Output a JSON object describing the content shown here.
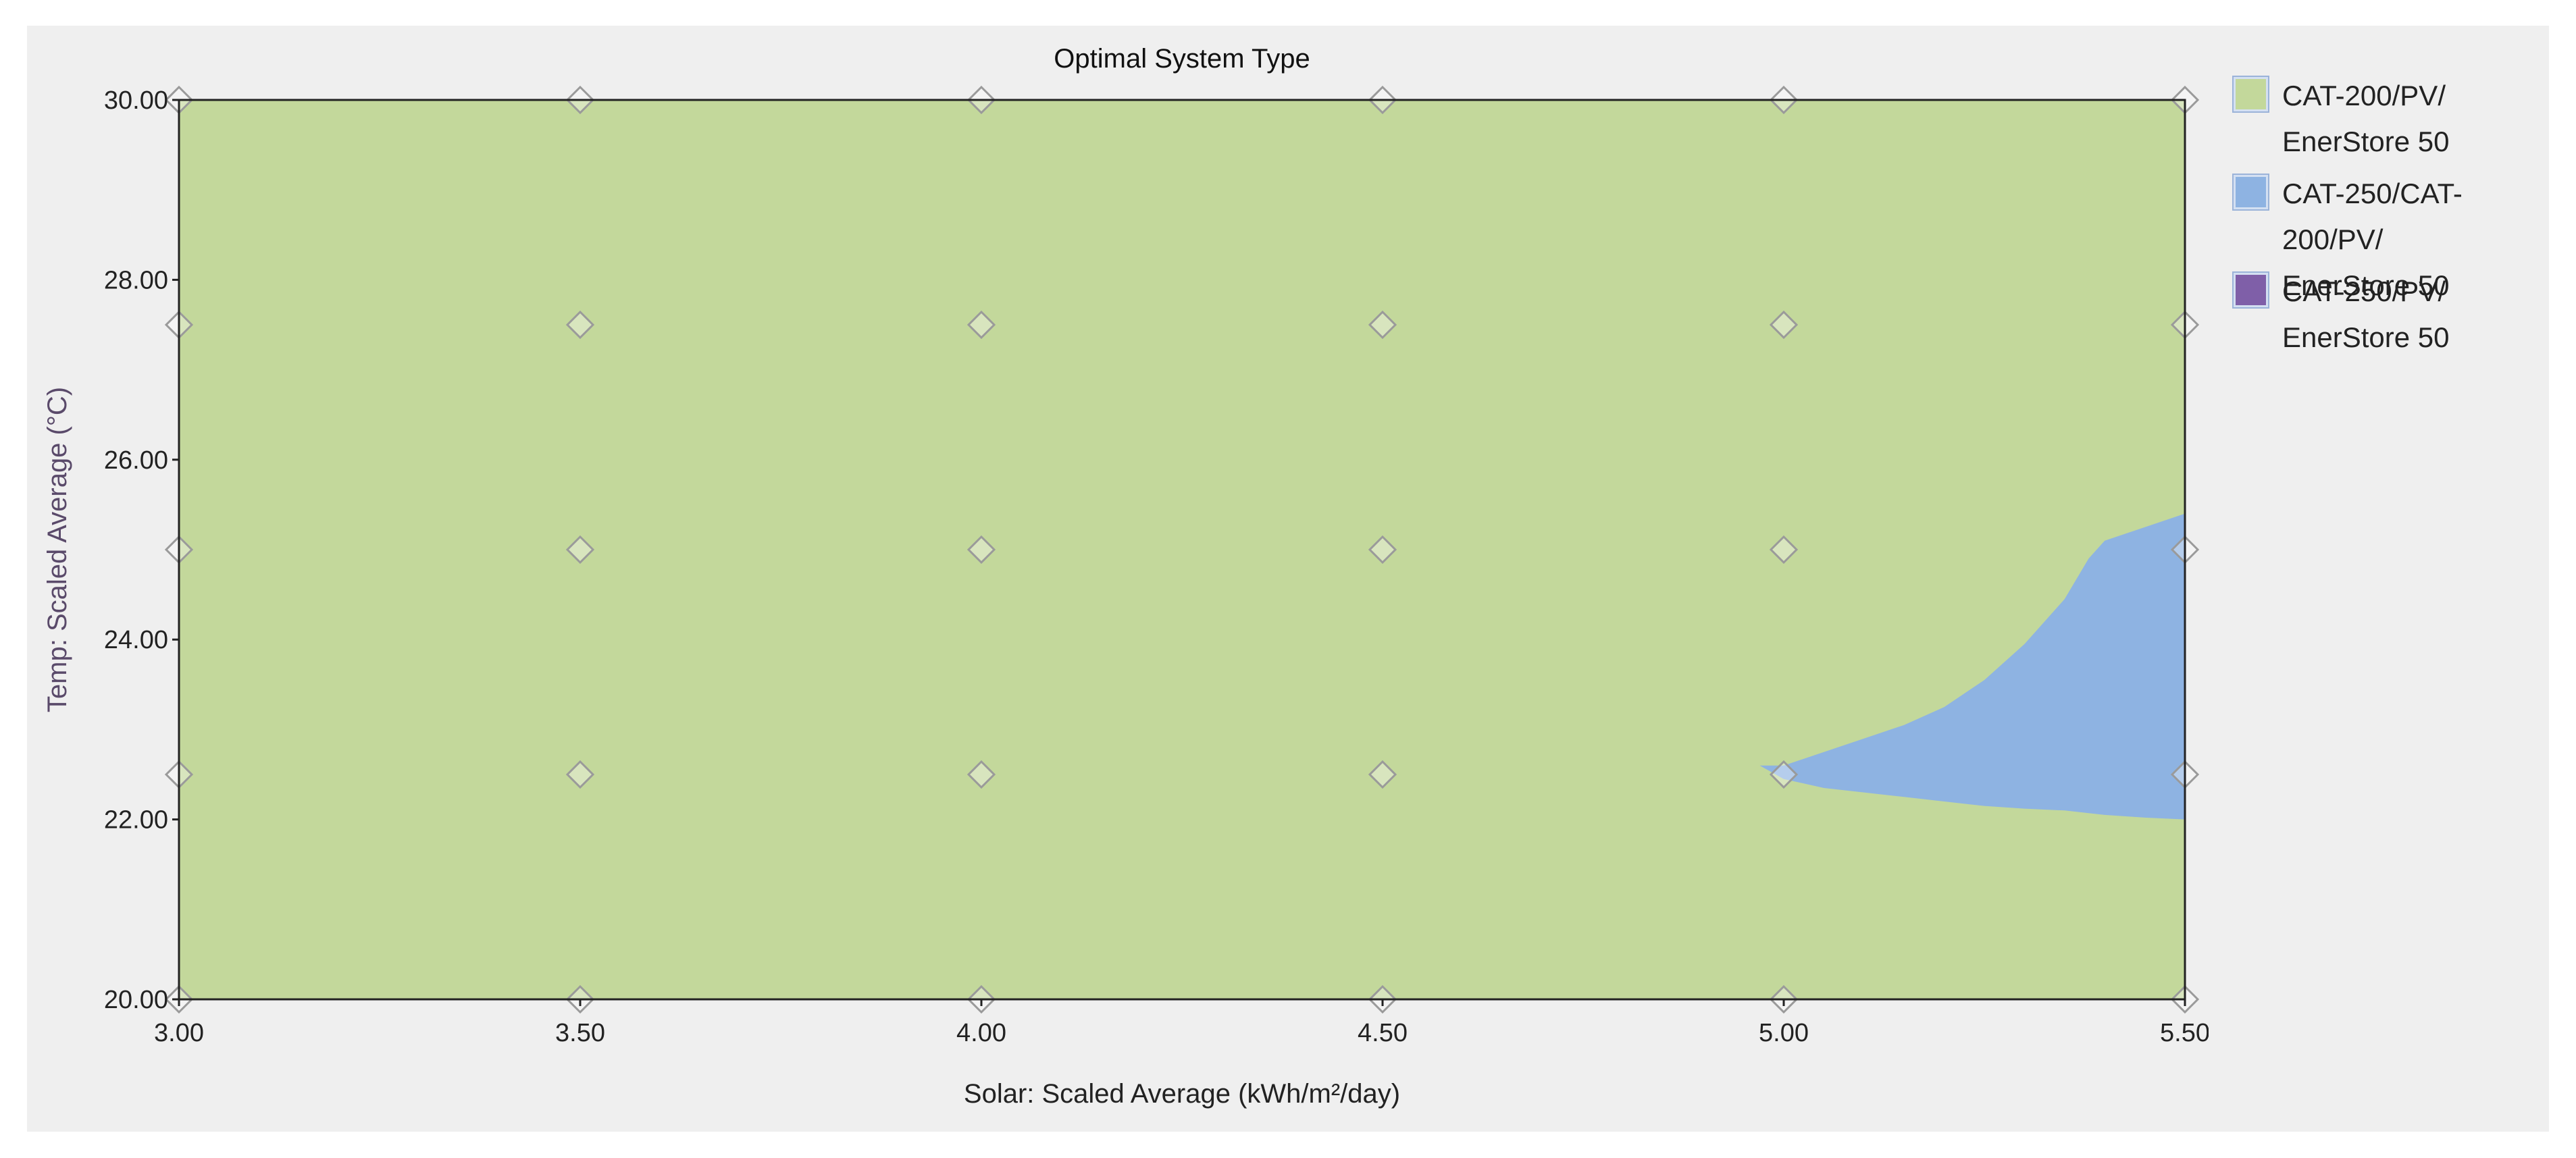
{
  "chart_data": {
    "type": "heatmap",
    "title": "Optimal System Type",
    "xlabel": "Solar: Scaled Average (kWh/m²/day)",
    "ylabel": "Temp: Scaled Average (°C)",
    "xlim": [
      3.0,
      5.5
    ],
    "ylim": [
      20.0,
      30.0
    ],
    "x_ticks": [
      "3.00",
      "3.50",
      "4.00",
      "4.50",
      "5.00",
      "5.50"
    ],
    "y_ticks": [
      "20.00",
      "22.00",
      "24.00",
      "26.00",
      "28.00",
      "30.00"
    ],
    "grid": false,
    "legend_position": "right",
    "background_category": "CAT-200/PV/ EnerStore 50",
    "categories": [
      {
        "name": "CAT-200/PV/\nEnerStore 50",
        "color": "#c3d89b"
      },
      {
        "name": "CAT-250/CAT-200/PV/\nEnerStore 50",
        "color": "#8eb3e2"
      },
      {
        "name": "CAT-250/PV/\nEnerStore 50",
        "color": "#7f5fa8"
      }
    ],
    "regions": [
      {
        "category": "CAT-250/CAT-200/PV/ EnerStore 50",
        "x": [
          4.97,
          5.0,
          5.05,
          5.1,
          5.15,
          5.2,
          5.25,
          5.3,
          5.35,
          5.38,
          5.4,
          5.45,
          5.5
        ],
        "y_upper": [
          22.6,
          22.6,
          22.75,
          22.9,
          23.05,
          23.25,
          23.55,
          23.95,
          24.45,
          24.9,
          25.1,
          25.25,
          25.4
        ],
        "y_lower": [
          22.6,
          22.45,
          22.35,
          22.3,
          22.25,
          22.2,
          22.15,
          22.12,
          22.1,
          22.07,
          22.05,
          22.02,
          22.0
        ]
      }
    ],
    "sample_points": {
      "x": [
        3.0,
        3.5,
        4.0,
        4.5,
        5.0,
        5.5
      ],
      "y": [
        20.0,
        22.5,
        25.0,
        27.5,
        30.0
      ]
    }
  }
}
